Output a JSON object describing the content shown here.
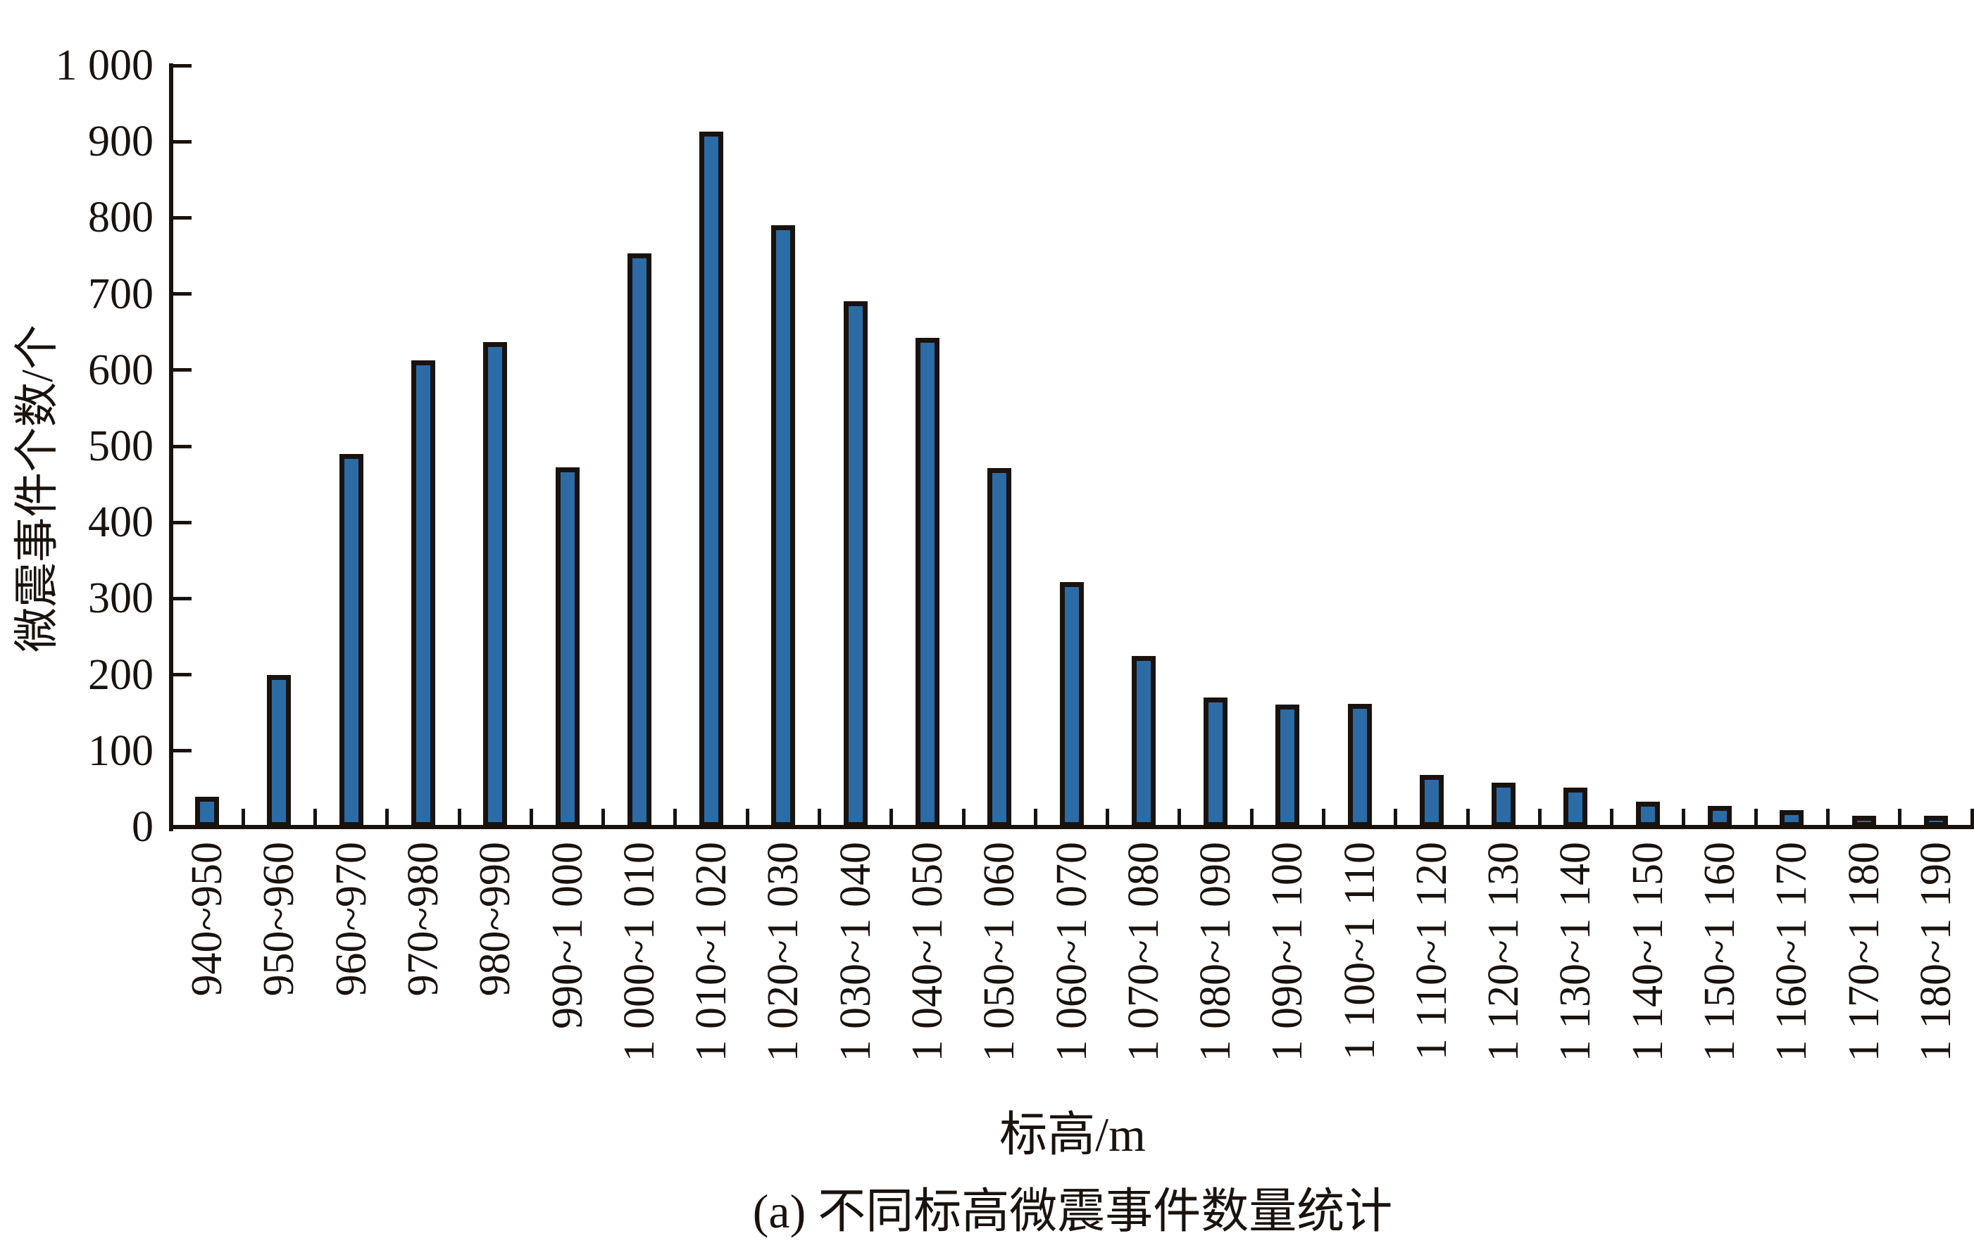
{
  "figure": {
    "caption": "(a) 不同标高微震事件数量统计"
  },
  "chart_data": {
    "type": "bar",
    "title": "",
    "xlabel": "标高/m",
    "ylabel": "微震事件个数/个",
    "categories": [
      "940~950",
      "950~960",
      "960~970",
      "970~980",
      "980~990",
      "990~1 000",
      "1 000~1 010",
      "1 010~1 020",
      "1 020~1 030",
      "1 030~1 040",
      "1 040~1 050",
      "1 050~1 060",
      "1 060~1 070",
      "1 070~1 080",
      "1 080~1 090",
      "1 090~1 100",
      "1 100~1 110",
      "1 110~1 120",
      "1 120~1 130",
      "1 130~1 140",
      "1 140~1 150",
      "1 150~1 160",
      "1 160~1 170",
      "1 170~1 180",
      "1 180~1 190"
    ],
    "values": [
      40,
      200,
      490,
      613,
      637,
      472,
      753,
      913,
      790,
      690,
      642,
      471,
      322,
      225,
      170,
      161,
      162,
      68,
      58,
      52,
      33,
      28,
      22,
      15,
      15
    ],
    "ylim": [
      0,
      1000
    ],
    "ytick_step": 100,
    "ytick_labels": [
      "0",
      "100",
      "200",
      "300",
      "400",
      "500",
      "600",
      "700",
      "800",
      "900",
      "1 000"
    ],
    "grid": "off",
    "legend": "none",
    "bar_fill_color": "#2d6ba4",
    "bar_edge_color": "#1a120d",
    "axis_color": "#1a120d"
  }
}
